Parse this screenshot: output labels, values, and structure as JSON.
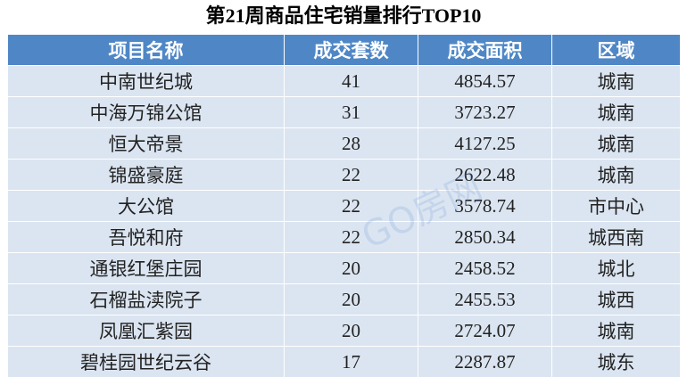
{
  "header": {
    "title": "第21周商品住宅销量排行TOP10"
  },
  "table": {
    "columns": [
      "项目名称",
      "成交套数",
      "成交面积",
      "区域"
    ],
    "rows": [
      [
        "中南世纪城",
        "41",
        "4854.57",
        "城南"
      ],
      [
        "中海万锦公馆",
        "31",
        "3723.27",
        "城南"
      ],
      [
        "恒大帝景",
        "28",
        "4127.25",
        "城南"
      ],
      [
        "锦盛豪庭",
        "22",
        "2622.48",
        "城南"
      ],
      [
        "大公馆",
        "22",
        "3578.74",
        "市中心"
      ],
      [
        "吾悦和府",
        "22",
        "2850.34",
        "城西南"
      ],
      [
        "通银红堡庄园",
        "20",
        "2458.52",
        "城北"
      ],
      [
        "石榴盐渎院子",
        "20",
        "2455.53",
        "城西"
      ],
      [
        "凤凰汇紫园",
        "20",
        "2724.07",
        "城南"
      ],
      [
        "碧桂园世纪云谷",
        "17",
        "2287.87",
        "城东"
      ]
    ]
  },
  "watermark": "GO房网"
}
